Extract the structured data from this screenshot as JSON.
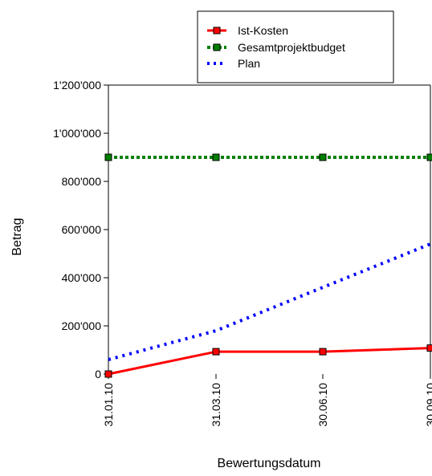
{
  "chart_data": {
    "type": "line",
    "title": "",
    "xlabel": "Bewertungsdatum",
    "ylabel": "Betrag",
    "categories": [
      "31.01.10",
      "31.03.10",
      "30.06.10",
      "30.09.10"
    ],
    "ylim": [
      0,
      1200000
    ],
    "yticks": [
      {
        "value": 0,
        "label": "0"
      },
      {
        "value": 200000,
        "label": "200'000"
      },
      {
        "value": 400000,
        "label": "400'000"
      },
      {
        "value": 600000,
        "label": "600'000"
      },
      {
        "value": 800000,
        "label": "800'000"
      },
      {
        "value": 1000000,
        "label": "1'000'000"
      },
      {
        "value": 1200000,
        "label": "1'200'000"
      }
    ],
    "grid": false,
    "legend_position": "top",
    "series": [
      {
        "name": "Ist-Kosten",
        "values": [
          0,
          93000,
          93000,
          108000
        ],
        "color": "#ff0000",
        "line_style": "solid",
        "markers": true
      },
      {
        "name": "Gesamtprojektbudget",
        "values": [
          900000,
          900000,
          900000,
          900000
        ],
        "color": "#008000",
        "line_style": "dotted",
        "markers": true
      },
      {
        "name": "Plan",
        "values": [
          60000,
          180000,
          360000,
          540000
        ],
        "color": "#0000ff",
        "line_style": "dotted",
        "markers": false
      }
    ]
  }
}
